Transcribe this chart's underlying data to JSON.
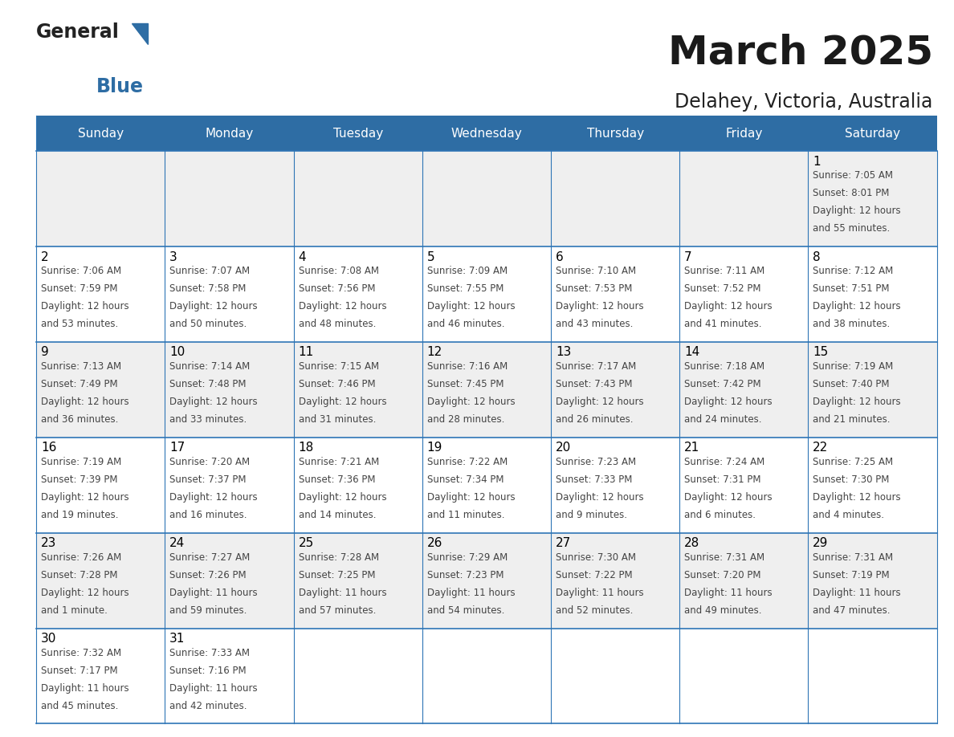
{
  "title": "March 2025",
  "subtitle": "Delahey, Victoria, Australia",
  "header_bg": "#2E6DA4",
  "header_text": "#FFFFFF",
  "weekdays": [
    "Sunday",
    "Monday",
    "Tuesday",
    "Wednesday",
    "Thursday",
    "Friday",
    "Saturday"
  ],
  "even_row_bg": "#EFEFEF",
  "odd_row_bg": "#FFFFFF",
  "border_color": "#2E75B6",
  "day_number_color": "#000000",
  "cell_text_color": "#444444",
  "cal_data": [
    [
      null,
      null,
      null,
      null,
      null,
      null,
      {
        "day": "1",
        "sunrise": "7:05 AM",
        "sunset": "8:01 PM",
        "daylight": "12 hours",
        "daylight2": "and 55 minutes."
      }
    ],
    [
      {
        "day": "2",
        "sunrise": "7:06 AM",
        "sunset": "7:59 PM",
        "daylight": "12 hours",
        "daylight2": "and 53 minutes."
      },
      {
        "day": "3",
        "sunrise": "7:07 AM",
        "sunset": "7:58 PM",
        "daylight": "12 hours",
        "daylight2": "and 50 minutes."
      },
      {
        "day": "4",
        "sunrise": "7:08 AM",
        "sunset": "7:56 PM",
        "daylight": "12 hours",
        "daylight2": "and 48 minutes."
      },
      {
        "day": "5",
        "sunrise": "7:09 AM",
        "sunset": "7:55 PM",
        "daylight": "12 hours",
        "daylight2": "and 46 minutes."
      },
      {
        "day": "6",
        "sunrise": "7:10 AM",
        "sunset": "7:53 PM",
        "daylight": "12 hours",
        "daylight2": "and 43 minutes."
      },
      {
        "day": "7",
        "sunrise": "7:11 AM",
        "sunset": "7:52 PM",
        "daylight": "12 hours",
        "daylight2": "and 41 minutes."
      },
      {
        "day": "8",
        "sunrise": "7:12 AM",
        "sunset": "7:51 PM",
        "daylight": "12 hours",
        "daylight2": "and 38 minutes."
      }
    ],
    [
      {
        "day": "9",
        "sunrise": "7:13 AM",
        "sunset": "7:49 PM",
        "daylight": "12 hours",
        "daylight2": "and 36 minutes."
      },
      {
        "day": "10",
        "sunrise": "7:14 AM",
        "sunset": "7:48 PM",
        "daylight": "12 hours",
        "daylight2": "and 33 minutes."
      },
      {
        "day": "11",
        "sunrise": "7:15 AM",
        "sunset": "7:46 PM",
        "daylight": "12 hours",
        "daylight2": "and 31 minutes."
      },
      {
        "day": "12",
        "sunrise": "7:16 AM",
        "sunset": "7:45 PM",
        "daylight": "12 hours",
        "daylight2": "and 28 minutes."
      },
      {
        "day": "13",
        "sunrise": "7:17 AM",
        "sunset": "7:43 PM",
        "daylight": "12 hours",
        "daylight2": "and 26 minutes."
      },
      {
        "day": "14",
        "sunrise": "7:18 AM",
        "sunset": "7:42 PM",
        "daylight": "12 hours",
        "daylight2": "and 24 minutes."
      },
      {
        "day": "15",
        "sunrise": "7:19 AM",
        "sunset": "7:40 PM",
        "daylight": "12 hours",
        "daylight2": "and 21 minutes."
      }
    ],
    [
      {
        "day": "16",
        "sunrise": "7:19 AM",
        "sunset": "7:39 PM",
        "daylight": "12 hours",
        "daylight2": "and 19 minutes."
      },
      {
        "day": "17",
        "sunrise": "7:20 AM",
        "sunset": "7:37 PM",
        "daylight": "12 hours",
        "daylight2": "and 16 minutes."
      },
      {
        "day": "18",
        "sunrise": "7:21 AM",
        "sunset": "7:36 PM",
        "daylight": "12 hours",
        "daylight2": "and 14 minutes."
      },
      {
        "day": "19",
        "sunrise": "7:22 AM",
        "sunset": "7:34 PM",
        "daylight": "12 hours",
        "daylight2": "and 11 minutes."
      },
      {
        "day": "20",
        "sunrise": "7:23 AM",
        "sunset": "7:33 PM",
        "daylight": "12 hours",
        "daylight2": "and 9 minutes."
      },
      {
        "day": "21",
        "sunrise": "7:24 AM",
        "sunset": "7:31 PM",
        "daylight": "12 hours",
        "daylight2": "and 6 minutes."
      },
      {
        "day": "22",
        "sunrise": "7:25 AM",
        "sunset": "7:30 PM",
        "daylight": "12 hours",
        "daylight2": "and 4 minutes."
      }
    ],
    [
      {
        "day": "23",
        "sunrise": "7:26 AM",
        "sunset": "7:28 PM",
        "daylight": "12 hours",
        "daylight2": "and 1 minute."
      },
      {
        "day": "24",
        "sunrise": "7:27 AM",
        "sunset": "7:26 PM",
        "daylight": "11 hours",
        "daylight2": "and 59 minutes."
      },
      {
        "day": "25",
        "sunrise": "7:28 AM",
        "sunset": "7:25 PM",
        "daylight": "11 hours",
        "daylight2": "and 57 minutes."
      },
      {
        "day": "26",
        "sunrise": "7:29 AM",
        "sunset": "7:23 PM",
        "daylight": "11 hours",
        "daylight2": "and 54 minutes."
      },
      {
        "day": "27",
        "sunrise": "7:30 AM",
        "sunset": "7:22 PM",
        "daylight": "11 hours",
        "daylight2": "and 52 minutes."
      },
      {
        "day": "28",
        "sunrise": "7:31 AM",
        "sunset": "7:20 PM",
        "daylight": "11 hours",
        "daylight2": "and 49 minutes."
      },
      {
        "day": "29",
        "sunrise": "7:31 AM",
        "sunset": "7:19 PM",
        "daylight": "11 hours",
        "daylight2": "and 47 minutes."
      }
    ],
    [
      {
        "day": "30",
        "sunrise": "7:32 AM",
        "sunset": "7:17 PM",
        "daylight": "11 hours",
        "daylight2": "and 45 minutes."
      },
      {
        "day": "31",
        "sunrise": "7:33 AM",
        "sunset": "7:16 PM",
        "daylight": "11 hours",
        "daylight2": "and 42 minutes."
      },
      null,
      null,
      null,
      null,
      null
    ]
  ]
}
